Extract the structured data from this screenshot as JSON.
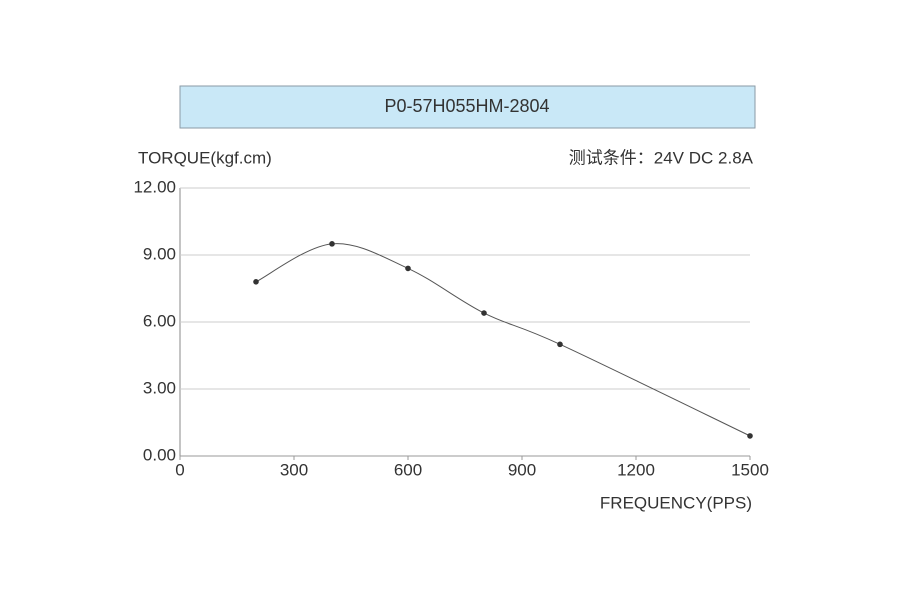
{
  "chart_data": {
    "type": "line",
    "title": "P0-57H055HM-2804",
    "y_label": "TORQUE(kgf.cm)",
    "annotation": "测试条件：24V DC   2.8A",
    "x_label": "FREQUENCY(PPS)",
    "x": [
      200,
      400,
      600,
      800,
      1000,
      1500
    ],
    "series": [
      {
        "color": "#555555",
        "values": [
          7.8,
          9.5,
          8.4,
          6.4,
          5.0,
          0.9
        ]
      }
    ],
    "xlim": [
      0,
      1500
    ],
    "xticks": [
      0,
      300,
      600,
      900,
      1200,
      1500
    ],
    "ylim": [
      0,
      12
    ],
    "yticks": [
      {
        "value": 0,
        "label": "0.00"
      },
      {
        "value": 3,
        "label": "3.00"
      },
      {
        "value": 6,
        "label": "6.00"
      },
      {
        "value": 9,
        "label": "9.00"
      },
      {
        "value": 12,
        "label": "12.00"
      }
    ],
    "grid": true,
    "smooth": true
  }
}
